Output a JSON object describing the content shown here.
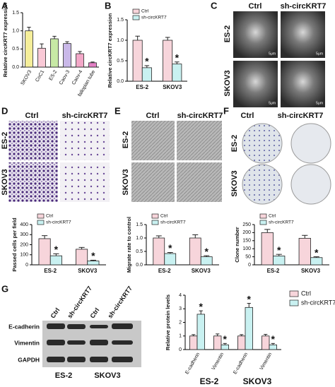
{
  "panels": {
    "labels": [
      "A",
      "B",
      "C",
      "D",
      "E",
      "F",
      "G"
    ]
  },
  "panel_c": {
    "columns": [
      "Ctrl",
      "sh-circKRT7"
    ],
    "rows": [
      "ES-2",
      "SKOV3"
    ],
    "scale_bar": "5μm"
  },
  "panel_d": {
    "columns": [
      "Ctrl",
      "sh-circKRT7"
    ],
    "rows": [
      "ES-2",
      "SKOV3"
    ]
  },
  "panel_e": {
    "columns": [
      "Ctrl",
      "sh-circKRT7"
    ],
    "rows": [
      "ES-2",
      "SKOV3"
    ]
  },
  "panel_f": {
    "columns": [
      "Ctrl",
      "sh-circKRT7"
    ],
    "rows": [
      "ES-2",
      "SKOV3"
    ]
  },
  "panel_g_blot": {
    "lanes": [
      "Ctrl",
      "sh-circKRT7",
      "Ctrl",
      "sh-circKRT7"
    ],
    "proteins": [
      "E-cadherin",
      "Vimentin",
      "GAPDH"
    ],
    "groups": [
      "ES-2",
      "SKOV3"
    ]
  },
  "chart_data": [
    {
      "type": "bar",
      "y_label": "Relative circKRT7 expression",
      "categories": [
        "SKOV3",
        "CoC1",
        "ES-2",
        "Caov-3",
        "Caov-4",
        "fallopian tube"
      ],
      "values": [
        1.0,
        0.52,
        0.78,
        0.65,
        0.37,
        0.12
      ],
      "errors": [
        0.1,
        0.12,
        0.07,
        0.05,
        0.06,
        0.02
      ],
      "colors": [
        "#f5ee9a",
        "#f9c9d6",
        "#c7e9a5",
        "#c9b8e8",
        "#f3a8c8",
        "#e27fc4"
      ],
      "ylim": [
        0,
        1.5
      ],
      "yticks": [
        {
          "value": 0,
          "label": "0.0"
        },
        {
          "value": 0.5,
          "label": "0.5"
        },
        {
          "value": 1,
          "label": "1.0"
        },
        {
          "value": 1.5,
          "label": "1.5"
        }
      ]
    },
    {
      "type": "bar",
      "y_label": "Relative circKRT7 expression",
      "categories": [
        "ES-2",
        "SKOV3"
      ],
      "legend": "top-left",
      "series": [
        {
          "name": "Ctrl",
          "color": "#f7d5db",
          "values": [
            1.0,
            1.0
          ],
          "errors": [
            0.1,
            0.07
          ]
        },
        {
          "name": "sh-circKRT7",
          "color": "#c9f1f1",
          "values": [
            0.33,
            0.42
          ],
          "errors": [
            0.05,
            0.05
          ],
          "annotations": [
            "*",
            "*"
          ]
        }
      ],
      "ylim": [
        0,
        1.5
      ],
      "yticks": [
        {
          "value": 0,
          "label": "0.0"
        },
        {
          "value": 0.5,
          "label": "0.5"
        },
        {
          "value": 1,
          "label": "1.0"
        },
        {
          "value": 1.5,
          "label": "1.5"
        }
      ]
    },
    {
      "type": "bar",
      "y_label": "Passed cells per field",
      "categories": [
        "ES-2",
        "SKOV3"
      ],
      "legend": "top-left",
      "series": [
        {
          "name": "Ctrl",
          "color": "#f7d5db",
          "values": [
            260,
            155
          ],
          "errors": [
            30,
            18
          ]
        },
        {
          "name": "sh-circKRT7",
          "color": "#c9f1f1",
          "values": [
            90,
            38
          ],
          "errors": [
            20,
            8
          ],
          "annotations": [
            "*",
            "*"
          ]
        }
      ],
      "ylim": [
        0,
        400
      ],
      "yticks": [
        0,
        100,
        200,
        300,
        400
      ]
    },
    {
      "type": "bar",
      "y_label": "Migrate rate to control",
      "categories": [
        "ES-2",
        "SKOV3"
      ],
      "legend": "top-left",
      "series": [
        {
          "name": "Ctrl",
          "color": "#f7d5db",
          "values": [
            1.0,
            1.0
          ],
          "errors": [
            0.08,
            0.12
          ]
        },
        {
          "name": "sh-circKRT7",
          "color": "#c9f1f1",
          "values": [
            0.42,
            0.3
          ],
          "errors": [
            0.04,
            0.04
          ],
          "annotations": [
            "*",
            "*"
          ]
        }
      ],
      "ylim": [
        0,
        1.5
      ],
      "yticks": [
        {
          "value": 0,
          "label": "0.0"
        },
        {
          "value": 0.5,
          "label": "0.5"
        },
        {
          "value": 1,
          "label": "1.0"
        },
        {
          "value": 1.5,
          "label": "1.5"
        }
      ]
    },
    {
      "type": "bar",
      "y_label": "Clone number",
      "categories": [
        "ES-2",
        "SKOV3"
      ],
      "legend": "top-left",
      "series": [
        {
          "name": "Ctrl",
          "color": "#f7d5db",
          "values": [
            200,
            165
          ],
          "errors": [
            20,
            18
          ]
        },
        {
          "name": "sh-circKRT7",
          "color": "#c9f1f1",
          "values": [
            55,
            45
          ],
          "errors": [
            10,
            5
          ],
          "annotations": [
            "*",
            "*"
          ]
        }
      ],
      "ylim": [
        0,
        250
      ],
      "yticks": [
        0,
        50,
        100,
        150,
        200,
        250
      ]
    },
    {
      "type": "bar",
      "y_label": "Relative protein levels",
      "categories": [
        "E-cadherin",
        "Vimentin",
        "E-cadherin",
        "Vimentin"
      ],
      "groups": [
        "ES-2",
        "SKOV3"
      ],
      "legend": "right",
      "series": [
        {
          "name": "Ctrl",
          "color": "#f7d5db",
          "values": [
            1,
            1,
            1,
            1
          ],
          "errors": [
            0.1,
            0.15,
            0.1,
            0.12
          ]
        },
        {
          "name": "sh-circKRT7",
          "color": "#c9f1f1",
          "values": [
            2.6,
            0.35,
            3.1,
            0.35
          ],
          "errors": [
            0.25,
            0.1,
            0.3,
            0.1
          ],
          "annotations": [
            "*",
            "*",
            "*",
            "*"
          ]
        }
      ],
      "ylim": [
        0,
        4
      ],
      "yticks": [
        0,
        1,
        2,
        3,
        4
      ]
    }
  ]
}
